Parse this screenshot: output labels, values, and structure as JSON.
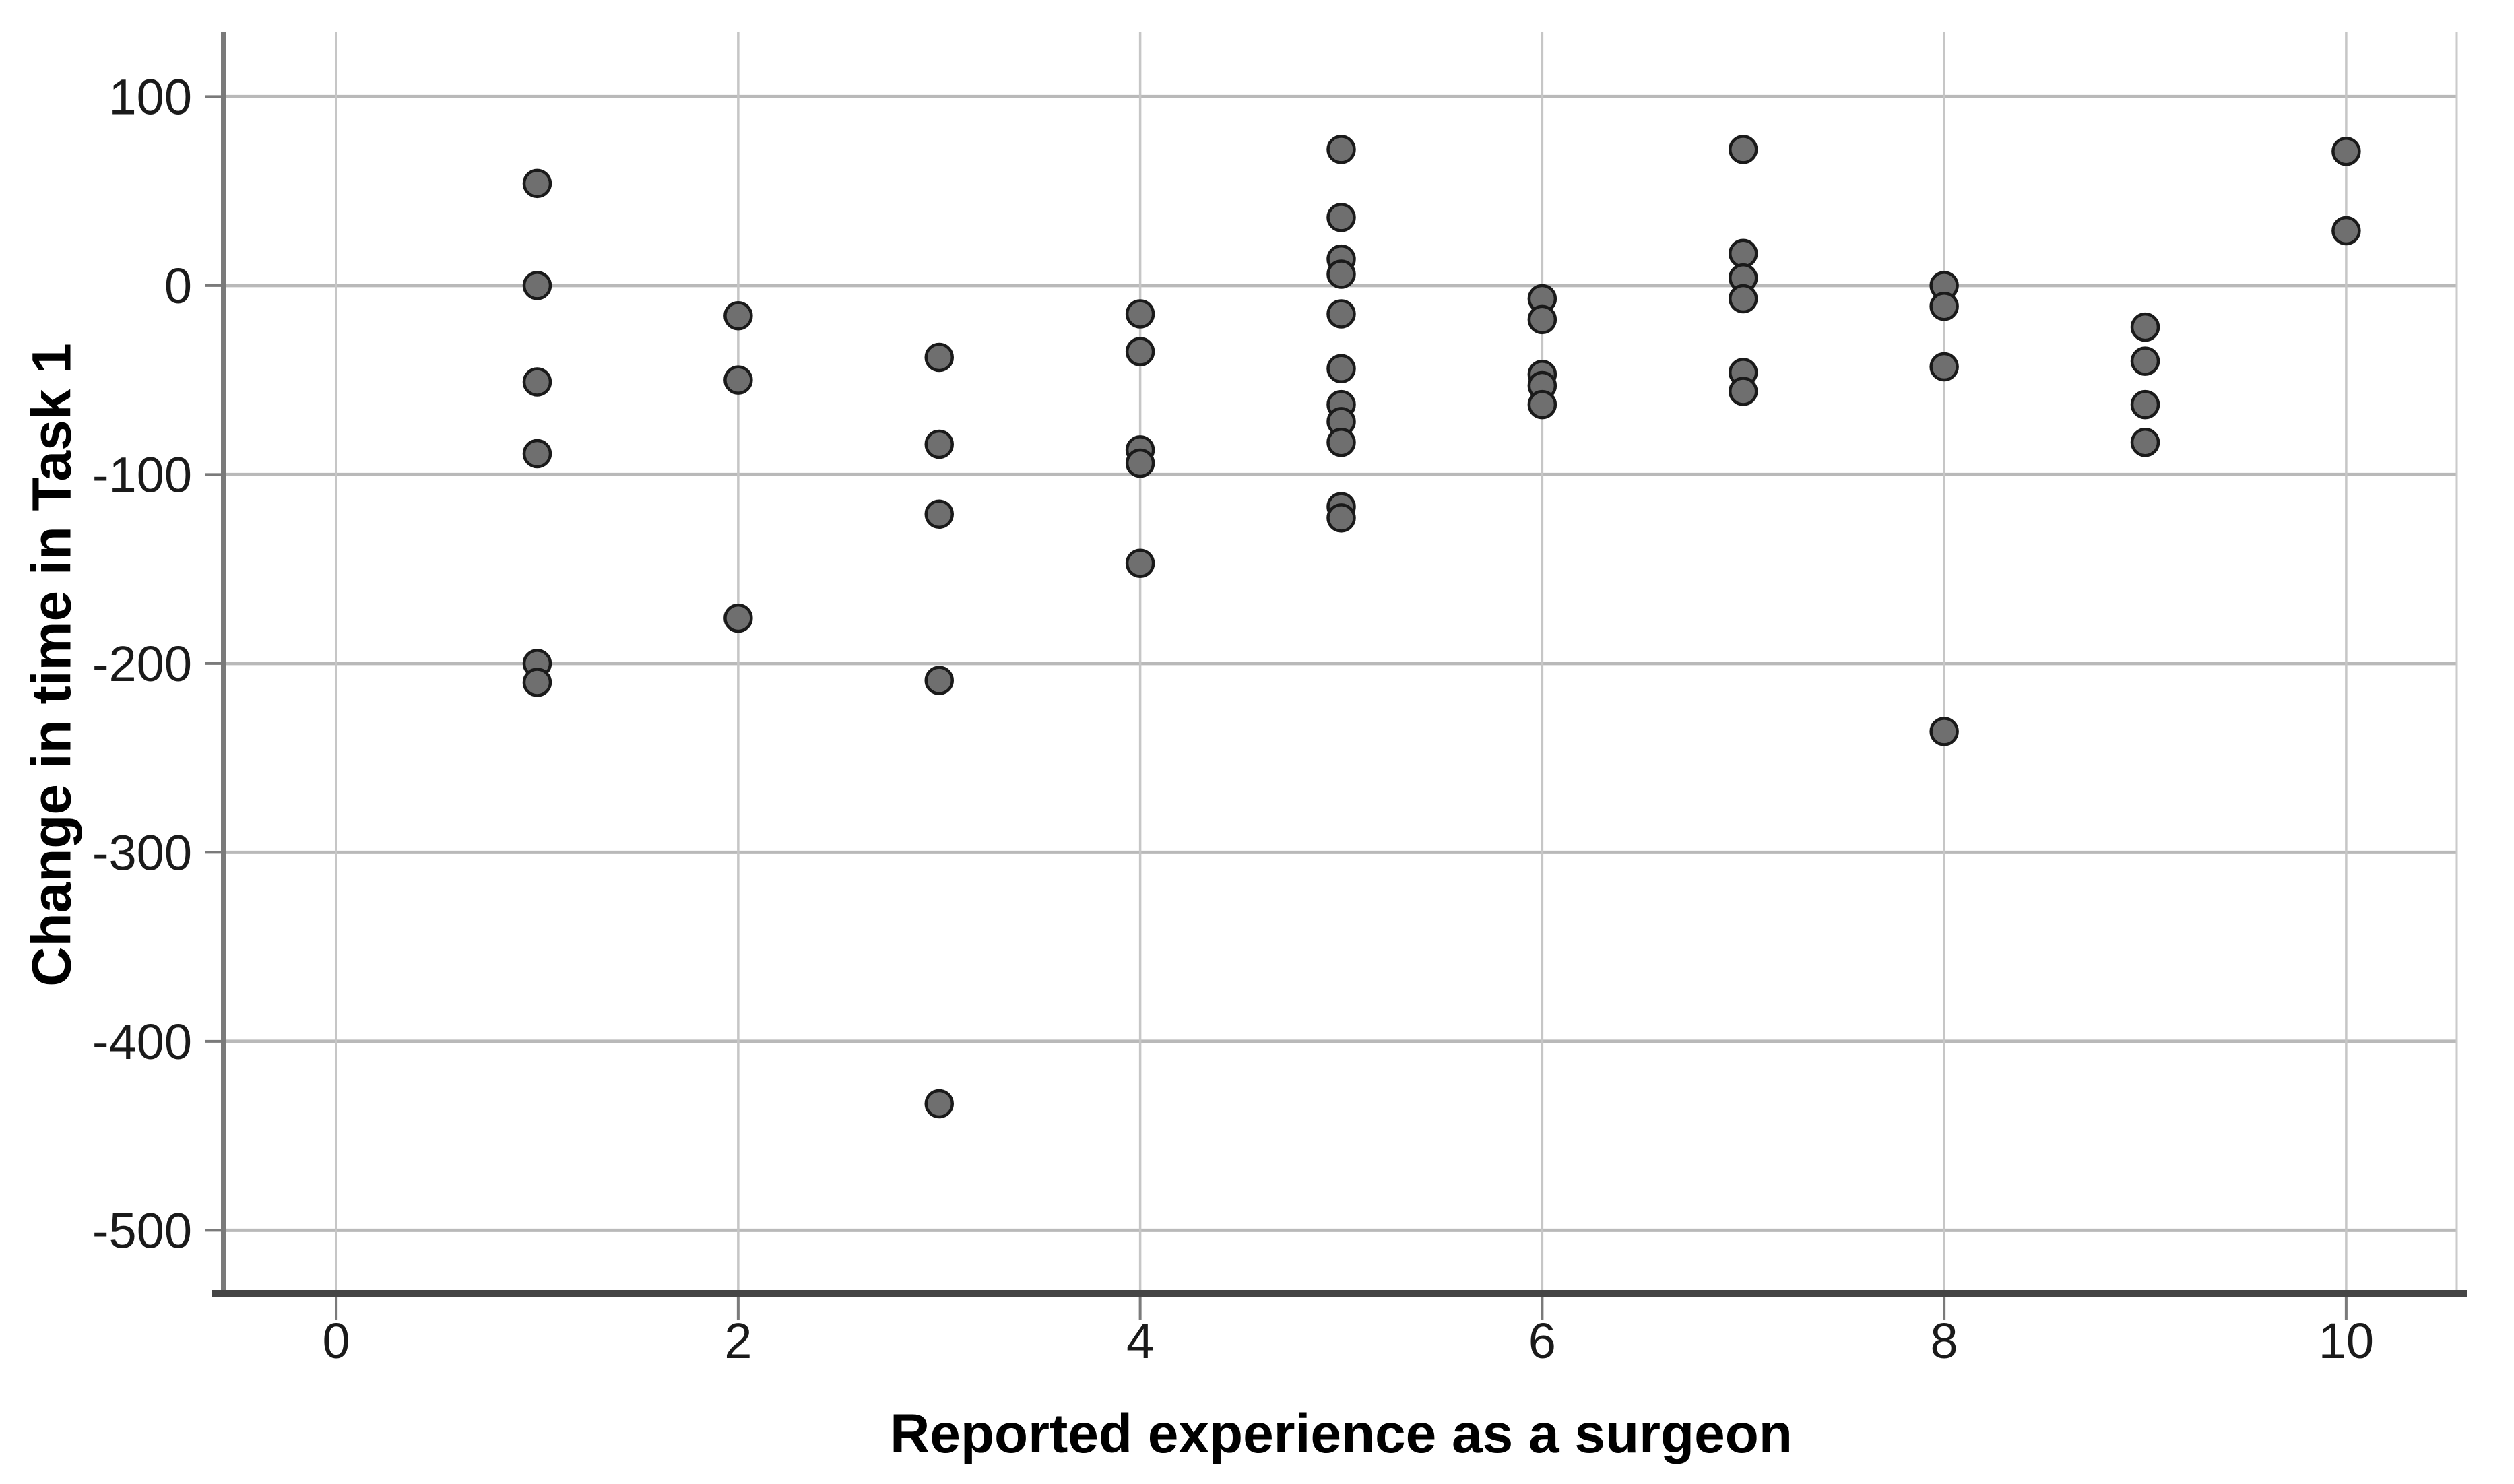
{
  "chart_data": {
    "type": "scatter",
    "title": "",
    "xlabel": "Reported experience as a surgeon",
    "ylabel": "Change in time in Task 1",
    "xlim": [
      -0.55,
      10.55
    ],
    "ylim": [
      -533,
      134
    ],
    "xticks": [
      0,
      2,
      4,
      6,
      8,
      10
    ],
    "yticks": [
      100,
      0,
      -100,
      -200,
      -300,
      -400,
      -500
    ],
    "grid": true,
    "legend_position": "none",
    "points": [
      [
        1,
        54
      ],
      [
        1,
        0
      ],
      [
        1,
        -51
      ],
      [
        1,
        -89
      ],
      [
        1,
        -200
      ],
      [
        1,
        -210
      ],
      [
        2,
        -16
      ],
      [
        2,
        -50
      ],
      [
        2,
        -176
      ],
      [
        3,
        -38
      ],
      [
        3,
        -84
      ],
      [
        3,
        -121
      ],
      [
        3,
        -209
      ],
      [
        3,
        -433
      ],
      [
        4,
        -15
      ],
      [
        4,
        -35
      ],
      [
        4,
        -87
      ],
      [
        4,
        -94
      ],
      [
        4,
        -147
      ],
      [
        5,
        72
      ],
      [
        5,
        36
      ],
      [
        5,
        14
      ],
      [
        5,
        6
      ],
      [
        5,
        -15
      ],
      [
        5,
        -44
      ],
      [
        5,
        -63
      ],
      [
        5,
        -72
      ],
      [
        5,
        -83
      ],
      [
        5,
        -117
      ],
      [
        5,
        -123
      ],
      [
        6,
        -7
      ],
      [
        6,
        -18
      ],
      [
        6,
        -47
      ],
      [
        6,
        -53
      ],
      [
        6,
        -63
      ],
      [
        7,
        72
      ],
      [
        7,
        17
      ],
      [
        7,
        4
      ],
      [
        7,
        -7
      ],
      [
        7,
        -46
      ],
      [
        7,
        -56
      ],
      [
        8,
        0
      ],
      [
        8,
        -11
      ],
      [
        8,
        -43
      ],
      [
        8,
        -236
      ],
      [
        9,
        -22
      ],
      [
        9,
        -40
      ],
      [
        9,
        -63
      ],
      [
        9,
        -83
      ],
      [
        10,
        71
      ],
      [
        10,
        29
      ]
    ],
    "style": {
      "background": "#ffffff",
      "point_fill": "#6f6f6f",
      "point_stroke": "#1a1a1a",
      "grid_color_h": "#b9b9b9",
      "grid_color_v": "#c6c6c6",
      "axis_left_color": "#7a7a7a",
      "axis_bottom_color": "#454545",
      "frame_right_color": "#cacaca",
      "tick_color": "#7a7a7a",
      "tick_label_color": "#1a1a1a"
    }
  }
}
